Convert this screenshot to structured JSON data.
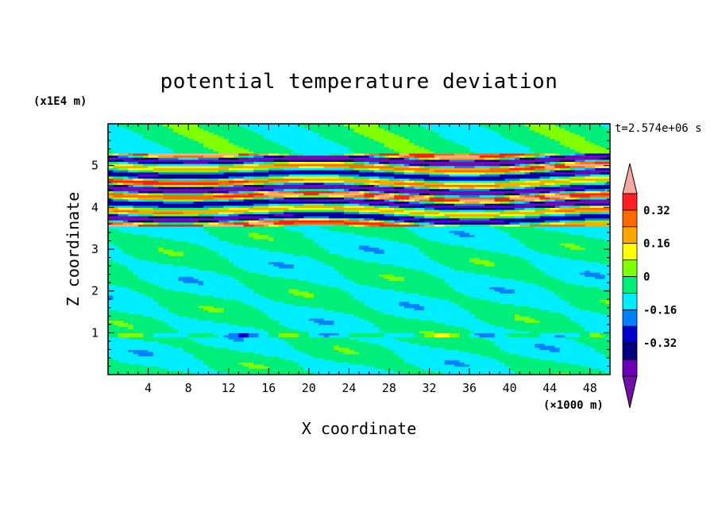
{
  "chart_data": {
    "type": "heatmap",
    "title": "potential temperature deviation",
    "xlabel": "X coordinate",
    "ylabel": "Z coordinate",
    "x_unit": "(×1000 m)",
    "y_unit": "(x1E4 m)",
    "time_label": "t=2.574e+06 s",
    "xlim": [
      0,
      50
    ],
    "ylim": [
      0,
      6
    ],
    "xticks": [
      "4",
      "8",
      "12",
      "16",
      "20",
      "24",
      "28",
      "32",
      "36",
      "40",
      "44",
      "48"
    ],
    "yticks": [
      "1",
      "2",
      "3",
      "4",
      "5"
    ],
    "colorbar": {
      "tick_labels": [
        "0.32",
        "0.16",
        "0",
        "-0.16",
        "-0.32"
      ],
      "tick_values": [
        0.32,
        0.16,
        0,
        -0.16,
        -0.32
      ],
      "levels": [
        0.48,
        0.4,
        0.32,
        0.24,
        0.16,
        0.08,
        0,
        -0.08,
        -0.16,
        -0.24,
        -0.32,
        -0.4,
        -0.48
      ],
      "colors": [
        "#f5a9a0",
        "#ff1f1f",
        "#ff6a00",
        "#ffa500",
        "#ffff00",
        "#7fff00",
        "#00ee7a",
        "#00eeff",
        "#0080ff",
        "#0000cc",
        "#000080",
        "#6a00b8",
        "#7010a8"
      ]
    },
    "bands": [
      {
        "z_min": 0.0,
        "z_max": 3.6,
        "description_values": [
          -0.05,
          0.05
        ]
      },
      {
        "z_min": 3.6,
        "z_max": 5.3,
        "description_values": [
          -0.48,
          0.48
        ]
      },
      {
        "z_min": 5.3,
        "z_max": 6.0,
        "description_values": [
          0.0,
          0.08
        ]
      }
    ]
  },
  "colors": {
    "background": "#ffffff",
    "axis": "#000000"
  }
}
